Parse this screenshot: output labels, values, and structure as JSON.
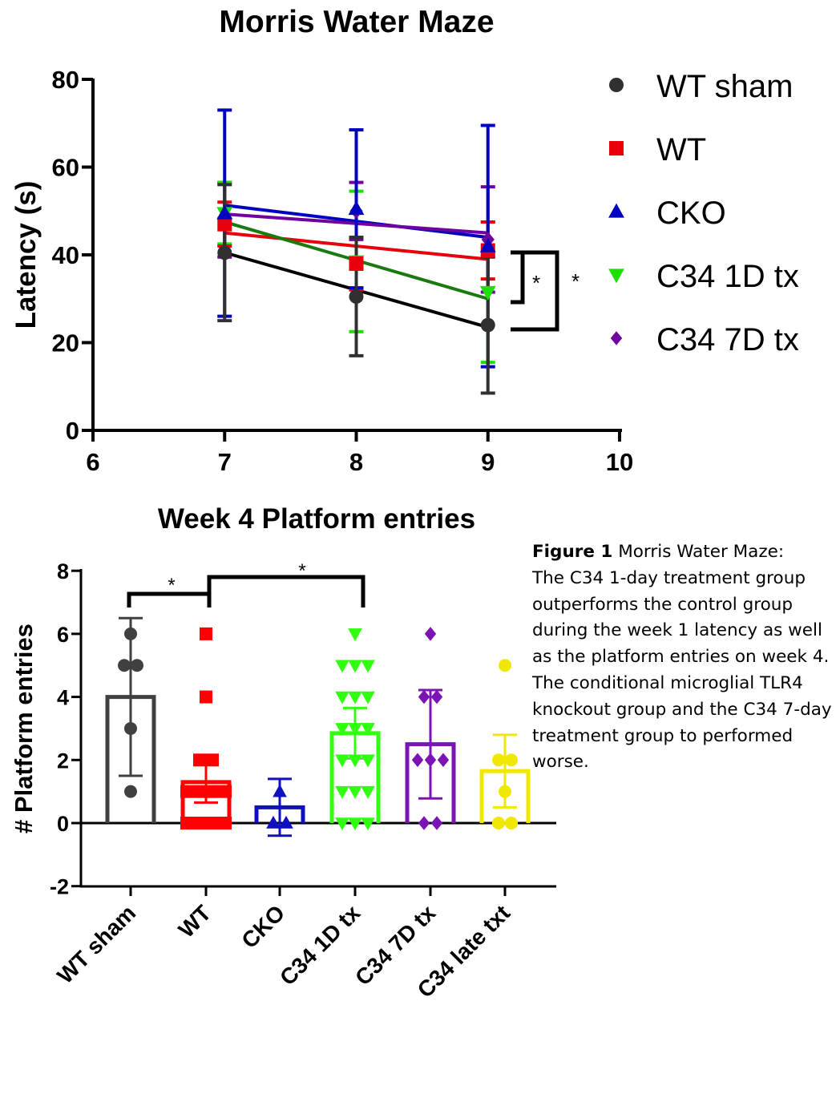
{
  "chart_data": [
    {
      "type": "line",
      "title": "Morris Water Maze",
      "xlabel": "",
      "ylabel": "Latency (s)",
      "xlim": [
        6,
        10
      ],
      "ylim": [
        0,
        80
      ],
      "xticks": [
        6,
        7,
        8,
        9,
        10
      ],
      "yticks": [
        0,
        20,
        40,
        60,
        80
      ],
      "grid": false,
      "legend_position": "right",
      "series": [
        {
          "name": "WT sham",
          "color": "#303030",
          "marker": "circle",
          "points": [
            {
              "x": 7,
              "y": 40.5,
              "err": 15.5
            },
            {
              "x": 8,
              "y": 30.5,
              "err": 13.5
            },
            {
              "x": 9,
              "y": 24,
              "err": 15.5
            }
          ],
          "fit": [
            [
              7,
              40.5
            ],
            [
              9,
              23.5
            ]
          ]
        },
        {
          "name": "WT",
          "color": "#e8000b",
          "marker": "square",
          "points": [
            {
              "x": 7,
              "y": 47,
              "err": 5
            },
            {
              "x": 8,
              "y": 38,
              "err": 6
            },
            {
              "x": 9,
              "y": 41,
              "err": 6.5
            }
          ],
          "fit": [
            [
              7,
              45
            ],
            [
              9,
              39
            ]
          ]
        },
        {
          "name": "CKO",
          "color": "#0000c0",
          "marker": "triangle-up",
          "points": [
            {
              "x": 7,
              "y": 49.5,
              "err": 23.5
            },
            {
              "x": 8,
              "y": 50.5,
              "err": 18
            },
            {
              "x": 9,
              "y": 42,
              "err": 27.5
            }
          ],
          "fit": [
            [
              7,
              51.3
            ],
            [
              9,
              44
            ]
          ]
        },
        {
          "name": "C34 1D tx",
          "color": "#1ee000",
          "marker": "triangle-down",
          "points": [
            {
              "x": 7,
              "y": 49.5,
              "err": 7
            },
            {
              "x": 8,
              "y": 38.5,
              "err": 16
            },
            {
              "x": 9,
              "y": 31.5,
              "err": 16
            }
          ],
          "fit": [
            [
              7,
              47.5
            ],
            [
              9,
              30
            ]
          ]
        },
        {
          "name": "C34 7D tx",
          "color": "#7000a0",
          "marker": "diamond",
          "points": [
            {
              "x": 7,
              "y": 48,
              "err": 8.5
            },
            {
              "x": 8,
              "y": 50,
              "err": 6.5
            },
            {
              "x": 9,
              "y": 43.5,
              "err": 12
            }
          ],
          "fit": [
            [
              7,
              49.3
            ],
            [
              9,
              45
            ]
          ]
        }
      ],
      "fit_lines": [
        {
          "series": "CKO",
          "color": "#0000c0"
        },
        {
          "series": "C34 7D tx",
          "color": "#7000a0"
        },
        {
          "series": "WT",
          "color": "#e8000b"
        },
        {
          "series": "C34 1D tx",
          "color": "#1a7a10"
        },
        {
          "series": "WT sham",
          "color": "#000000"
        }
      ],
      "annotations": [
        {
          "text": "*",
          "between": [
            "WT",
            "C34 1D tx"
          ],
          "bracket_y": [
            41,
            29.5
          ]
        },
        {
          "text": "*",
          "between": [
            "WT",
            "WT sham"
          ],
          "bracket_y": [
            41,
            22.5
          ]
        }
      ]
    },
    {
      "type": "bar",
      "title": "Week 4 Platform entries",
      "xlabel": "",
      "ylabel": "# Platform entries",
      "ylim": [
        -2,
        8
      ],
      "yticks": [
        -2,
        0,
        2,
        4,
        6,
        8
      ],
      "grid": false,
      "categories": [
        "WT sham",
        "WT",
        "CKO",
        "C34 1D tx",
        "C34 7D tx",
        "C34 late txt"
      ],
      "series": [
        {
          "name": "WT sham",
          "color": "#404040",
          "marker": "circle",
          "mean": 4,
          "err": 2.5,
          "points": [
            1,
            3,
            5,
            5,
            6
          ]
        },
        {
          "name": "WT",
          "color": "#ff0000",
          "marker": "square",
          "mean": 1.3,
          "err": 0.65,
          "points": [
            0,
            0,
            0,
            0,
            0,
            0,
            0,
            0,
            1,
            1,
            1,
            1,
            2,
            2,
            4,
            6
          ]
        },
        {
          "name": "CKO",
          "color": "#1010c0",
          "marker": "triangle-up",
          "mean": 0.5,
          "err": 0.9,
          "points": [
            0,
            0,
            1
          ]
        },
        {
          "name": "C34 1D tx",
          "color": "#30ff10",
          "marker": "triangle-down",
          "mean": 2.85,
          "err": 0.8,
          "points": [
            0,
            0,
            0,
            1,
            1,
            1,
            2,
            2,
            2,
            3,
            3,
            3,
            4,
            4,
            4,
            5,
            5,
            5,
            6
          ]
        },
        {
          "name": "C34 7D tx",
          "color": "#7a14b4",
          "marker": "diamond",
          "mean": 2.5,
          "err": 1.72,
          "points": [
            0,
            0,
            2,
            2,
            2,
            4,
            4,
            6
          ]
        },
        {
          "name": "C34 late txt",
          "color": "#f0e800",
          "marker": "circle",
          "mean": 1.65,
          "err": 1.15,
          "points": [
            0,
            0,
            1,
            2,
            2,
            5
          ]
        }
      ],
      "annotations": [
        {
          "text": "*",
          "between": [
            "WT sham",
            "WT"
          ],
          "y": 7.2
        },
        {
          "text": "*",
          "between": [
            "WT",
            "C34 1D tx"
          ],
          "y": 7.75
        }
      ]
    }
  ],
  "caption": {
    "label": "Figure 1",
    "lines": [
      " Morris Water Maze:",
      "The C34 1-day treatment group",
      "outperforms the control group",
      "during the week 1 latency as well",
      "as the platform entries on week 4.",
      "The conditional microglial TLR4",
      "knockout group and the C34 7-day",
      "treatment group to performed",
      "worse."
    ]
  }
}
